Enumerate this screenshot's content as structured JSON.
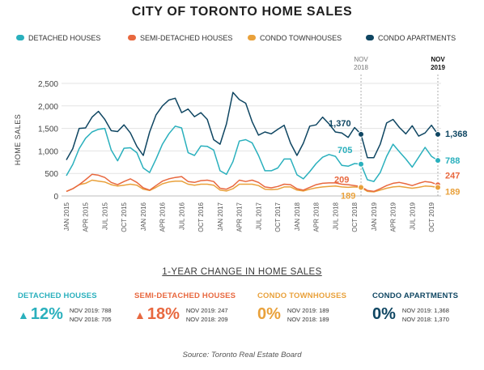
{
  "title": "CITY OF TORONTO HOME SALES",
  "chart_data": {
    "type": "line",
    "ylabel": "HOME SALES",
    "ylim": [
      0,
      2500
    ],
    "yticks": [
      "0",
      "500",
      "1,000",
      "1,500",
      "2,000",
      "2,500"
    ],
    "grid": true,
    "legend_placement": "top",
    "xtick_labels": [
      "JAN 2015",
      "APR 2015",
      "JUL 2015",
      "OCT 2015",
      "JAN 2016",
      "APR 2016",
      "JUL 2016",
      "OCT 2016",
      "JAN 2017",
      "APR 2017",
      "JUL 2017",
      "OCT 2017",
      "JAN 2018",
      "APR 2018",
      "JUL 2018",
      "OCT 2018",
      "JAN 2019",
      "APR 2019",
      "JUL 2019",
      "OCT 2019"
    ],
    "marker_labels": [
      {
        "text": "NOV\n2018",
        "month_index": 46,
        "bold": false
      },
      {
        "text": "NOV\n2019",
        "month_index": 58,
        "bold": true
      }
    ],
    "series": [
      {
        "name": "DETACHED HOUSES",
        "color": "#2ab0bd",
        "values": [
          450,
          700,
          1050,
          1280,
          1420,
          1480,
          1500,
          1020,
          780,
          1060,
          1070,
          960,
          620,
          520,
          820,
          1150,
          1380,
          1550,
          1510,
          960,
          900,
          1110,
          1100,
          1020,
          560,
          480,
          760,
          1220,
          1250,
          1180,
          900,
          560,
          560,
          620,
          820,
          820,
          470,
          380,
          540,
          720,
          860,
          920,
          880,
          680,
          660,
          720,
          705,
          360,
          320,
          520,
          880,
          1150,
          980,
          820,
          640,
          860,
          1080,
          880,
          788
        ]
      },
      {
        "name": "SEMI-DETACHED HOUSES",
        "color": "#e8683f",
        "values": [
          100,
          160,
          250,
          360,
          480,
          460,
          410,
          300,
          250,
          320,
          380,
          300,
          180,
          130,
          230,
          330,
          380,
          410,
          430,
          320,
          300,
          340,
          350,
          320,
          170,
          150,
          220,
          350,
          320,
          350,
          300,
          200,
          180,
          210,
          260,
          250,
          160,
          130,
          190,
          250,
          280,
          290,
          290,
          260,
          250,
          230,
          209,
          120,
          100,
          160,
          230,
          280,
          300,
          270,
          230,
          280,
          320,
          300,
          247
        ]
      },
      {
        "name": "CONDO TOWNHOUSES",
        "color": "#e9a13b",
        "values": [
          100,
          160,
          250,
          280,
          350,
          330,
          310,
          250,
          220,
          240,
          260,
          240,
          150,
          120,
          190,
          270,
          310,
          330,
          330,
          260,
          240,
          260,
          260,
          240,
          130,
          110,
          160,
          260,
          260,
          260,
          230,
          150,
          140,
          150,
          200,
          200,
          130,
          110,
          150,
          180,
          200,
          210,
          220,
          200,
          190,
          200,
          189,
          100,
          90,
          130,
          170,
          200,
          210,
          190,
          170,
          190,
          220,
          210,
          189
        ]
      },
      {
        "name": "CONDO APARTMENTS",
        "color": "#0f4662",
        "values": [
          800,
          1050,
          1500,
          1510,
          1750,
          1880,
          1700,
          1450,
          1430,
          1580,
          1400,
          1100,
          900,
          1420,
          1800,
          2000,
          2130,
          2170,
          1850,
          1930,
          1760,
          1850,
          1700,
          1250,
          1150,
          1600,
          2300,
          2140,
          2060,
          1650,
          1350,
          1420,
          1380,
          1480,
          1570,
          1170,
          900,
          1170,
          1550,
          1580,
          1750,
          1600,
          1420,
          1400,
          1300,
          1520,
          1370,
          850,
          850,
          1150,
          1620,
          1700,
          1520,
          1380,
          1560,
          1330,
          1400,
          1570,
          1368
        ]
      }
    ],
    "end_labels": [
      {
        "series": 3,
        "nov2018": "1,370",
        "nov2019": "1,368"
      },
      {
        "series": 0,
        "nov2018": "705",
        "nov2019": "788"
      },
      {
        "series": 1,
        "nov2018": "209",
        "nov2019": "247"
      },
      {
        "series": 2,
        "nov2018": "189",
        "nov2019": "189"
      }
    ]
  },
  "summary": {
    "heading": "1-YEAR CHANGE IN HOME SALES",
    "items": [
      {
        "label": "DETACHED HOUSES",
        "color": "#2ab0bd",
        "arrow": "▲",
        "pct": "12%",
        "line1": "NOV 2019: 788",
        "line2": "NOV 2018: 705"
      },
      {
        "label": "SEMI-DETACHED HOUSES",
        "color": "#e8683f",
        "arrow": "▲",
        "pct": "18%",
        "line1": "NOV 2019: 247",
        "line2": "NOV 2018: 209"
      },
      {
        "label": "CONDO TOWNHOUSES",
        "color": "#e9a13b",
        "arrow": "",
        "pct": "0%",
        "line1": "NOV 2019: 189",
        "line2": "NOV 2018: 189"
      },
      {
        "label": "CONDO APARTMENTS",
        "color": "#0f4662",
        "arrow": "",
        "pct": "0%",
        "line1": "NOV 2019: 1,368",
        "line2": "NOV 2018: 1,370"
      }
    ]
  },
  "source": "Source: Toronto Real Estate Board"
}
